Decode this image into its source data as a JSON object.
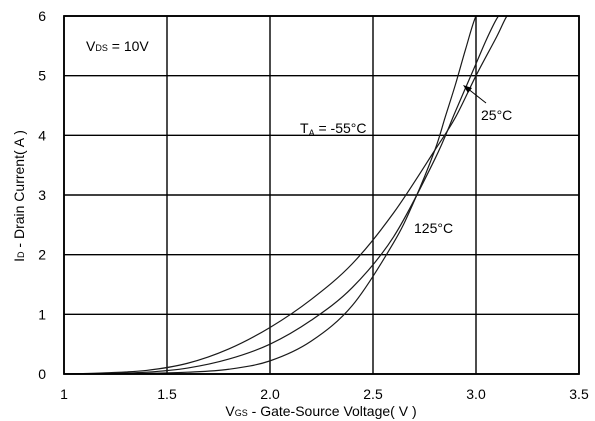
{
  "chart_data": {
    "type": "line",
    "title": "",
    "xlabel": {
      "main": "V",
      "sub": "GS",
      "rest": " - Gate-Source Voltage( V )"
    },
    "ylabel": {
      "main": "I",
      "sub": "D",
      "rest": " - Drain Current( A )"
    },
    "xlim": [
      1,
      3.5
    ],
    "ylim": [
      0,
      6
    ],
    "x_ticks": [
      "1",
      "1.5",
      "2.0",
      "2.5",
      "3.0",
      "3.5"
    ],
    "y_ticks": [
      "0",
      "1",
      "2",
      "3",
      "4",
      "5",
      "6"
    ],
    "grid": true,
    "condition": {
      "main": "V",
      "sub": "DS",
      "rest": " = 10V"
    },
    "series": [
      {
        "name": "-55°C",
        "label_main": "T",
        "label_sub": "A",
        "label_rest": " = -55°C",
        "x": [
          1.0,
          1.2,
          1.4,
          1.6,
          1.8,
          2.0,
          2.2,
          2.4,
          2.6,
          2.7,
          2.8,
          2.85,
          2.9,
          2.95,
          3.0,
          3.05
        ],
        "y": [
          0.0,
          0.0,
          0.01,
          0.03,
          0.08,
          0.22,
          0.55,
          1.15,
          2.2,
          2.9,
          3.75,
          4.3,
          4.85,
          5.45,
          6.0,
          6.2
        ]
      },
      {
        "name": "25°C",
        "label_main": "",
        "label_sub": "",
        "label_rest": "25°C",
        "x": [
          1.0,
          1.2,
          1.4,
          1.6,
          1.8,
          2.0,
          2.2,
          2.4,
          2.6,
          2.8,
          2.9,
          3.0,
          3.05,
          3.1,
          3.15
        ],
        "y": [
          0.0,
          0.01,
          0.03,
          0.1,
          0.25,
          0.5,
          0.9,
          1.45,
          2.3,
          3.6,
          4.4,
          5.2,
          5.6,
          5.95,
          6.2
        ]
      },
      {
        "name": "125°C",
        "label_main": "",
        "label_sub": "",
        "label_rest": "125°C",
        "x": [
          1.0,
          1.2,
          1.4,
          1.6,
          1.8,
          2.0,
          2.2,
          2.4,
          2.6,
          2.8,
          2.9,
          3.0,
          3.1,
          3.15,
          3.2
        ],
        "y": [
          0.0,
          0.02,
          0.06,
          0.18,
          0.42,
          0.78,
          1.25,
          1.85,
          2.7,
          3.75,
          4.3,
          5.0,
          5.65,
          6.0,
          6.2
        ]
      }
    ]
  }
}
